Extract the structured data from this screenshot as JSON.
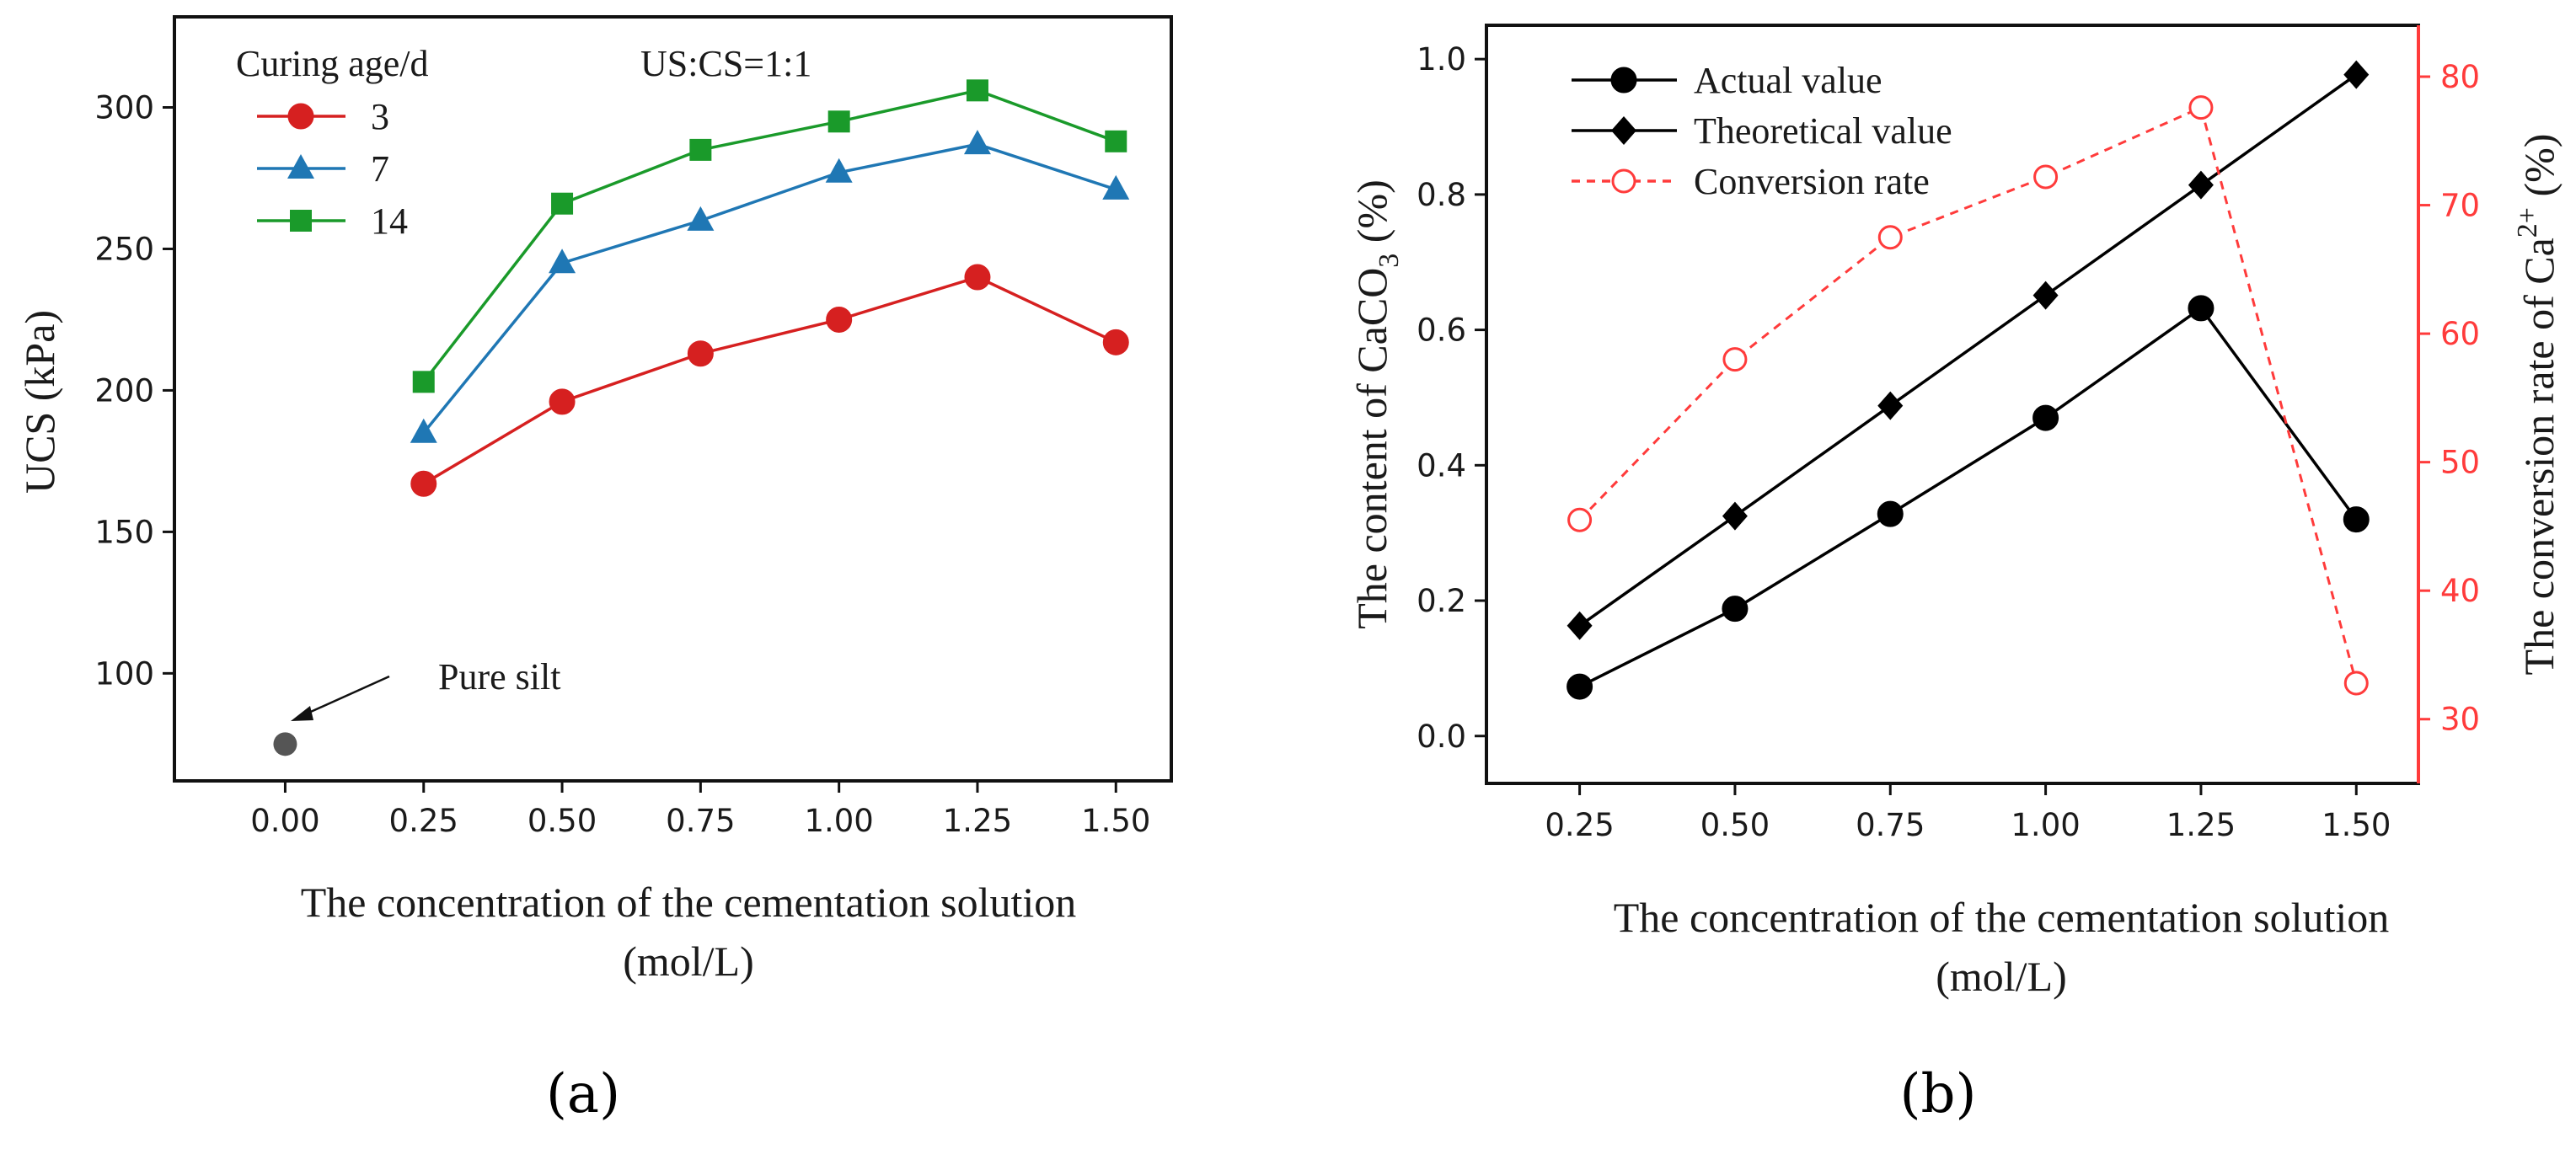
{
  "chart_data": [
    {
      "id": "a",
      "type": "line",
      "caption": "(a)",
      "xlabel": "The concentration of the cementation solution",
      "xunit": "(mol/L)",
      "ylabel": "UCS (kPa)",
      "xlim": [
        -0.2,
        1.6
      ],
      "ylim": [
        62,
        332
      ],
      "xticks": [
        0.0,
        0.25,
        0.5,
        0.75,
        1.0,
        1.25,
        1.5
      ],
      "xtick_labels": [
        "0.00",
        "0.25",
        "0.50",
        "0.75",
        "1.00",
        "1.25",
        "1.50"
      ],
      "yticks": [
        100,
        150,
        200,
        250,
        300
      ],
      "ytick_labels": [
        "100",
        "150",
        "200",
        "250",
        "300"
      ],
      "legend_title": "Curing age/d",
      "annotation": "US:CS=1:1",
      "x": [
        0.25,
        0.5,
        0.75,
        1.0,
        1.25,
        1.5
      ],
      "series": [
        {
          "name": "3",
          "values": [
            167,
            196,
            213,
            225,
            240,
            217
          ],
          "color": "#d62020",
          "marker": "circle"
        },
        {
          "name": "7",
          "values": [
            185,
            245,
            260,
            277,
            287,
            271
          ],
          "color": "#1f77b4",
          "marker": "triangle"
        },
        {
          "name": "14",
          "values": [
            203,
            266,
            285,
            295,
            306,
            288
          ],
          "color": "#1a9a2a",
          "marker": "square"
        }
      ],
      "reference_point": {
        "label": "Pure silt",
        "x": 0.0,
        "y": 75,
        "color": "#555555"
      }
    },
    {
      "id": "b",
      "type": "line",
      "caption": "(b)",
      "xlabel": "The concentration of the cementation solution",
      "xunit": "(mol/L)",
      "ylabel_left": "The content of  CaCO3 (%)",
      "ylabel_right": "The conversion rate of  Ca2+ (%)",
      "xlim": [
        0.1,
        1.6
      ],
      "ylim_left": [
        -0.07,
        1.05
      ],
      "ylim_right": [
        25,
        84
      ],
      "xticks": [
        0.25,
        0.5,
        0.75,
        1.0,
        1.25,
        1.5
      ],
      "xtick_labels": [
        "0.25",
        "0.50",
        "0.75",
        "1.00",
        "1.25",
        "1.50"
      ],
      "yticks_left": [
        0.0,
        0.2,
        0.4,
        0.6,
        0.8,
        1.0
      ],
      "ytick_labels_left": [
        "0.0",
        "0.2",
        "0.4",
        "0.6",
        "0.8",
        "1.0"
      ],
      "yticks_right": [
        30,
        40,
        50,
        60,
        70,
        80
      ],
      "ytick_labels_right": [
        "30",
        "40",
        "50",
        "60",
        "70",
        "80"
      ],
      "right_axis_color": "#ff3b3b",
      "x": [
        0.25,
        0.5,
        0.75,
        1.0,
        1.25,
        1.5
      ],
      "series": [
        {
          "name": "Actual value",
          "axis": "left",
          "values": [
            0.073,
            0.188,
            0.328,
            0.47,
            0.632,
            0.32
          ],
          "color": "#000000",
          "marker": "circle",
          "line": "solid"
        },
        {
          "name": "Theoretical value",
          "axis": "left",
          "values": [
            0.163,
            0.325,
            0.488,
            0.651,
            0.814,
            0.977
          ],
          "color": "#000000",
          "marker": "diamond",
          "line": "solid"
        },
        {
          "name": "Conversion rate",
          "axis": "right",
          "values": [
            45.5,
            58,
            67.5,
            72.2,
            77.6,
            32.8
          ],
          "color": "#ff3b3b",
          "marker": "open-circle",
          "line": "dashed"
        }
      ]
    }
  ]
}
